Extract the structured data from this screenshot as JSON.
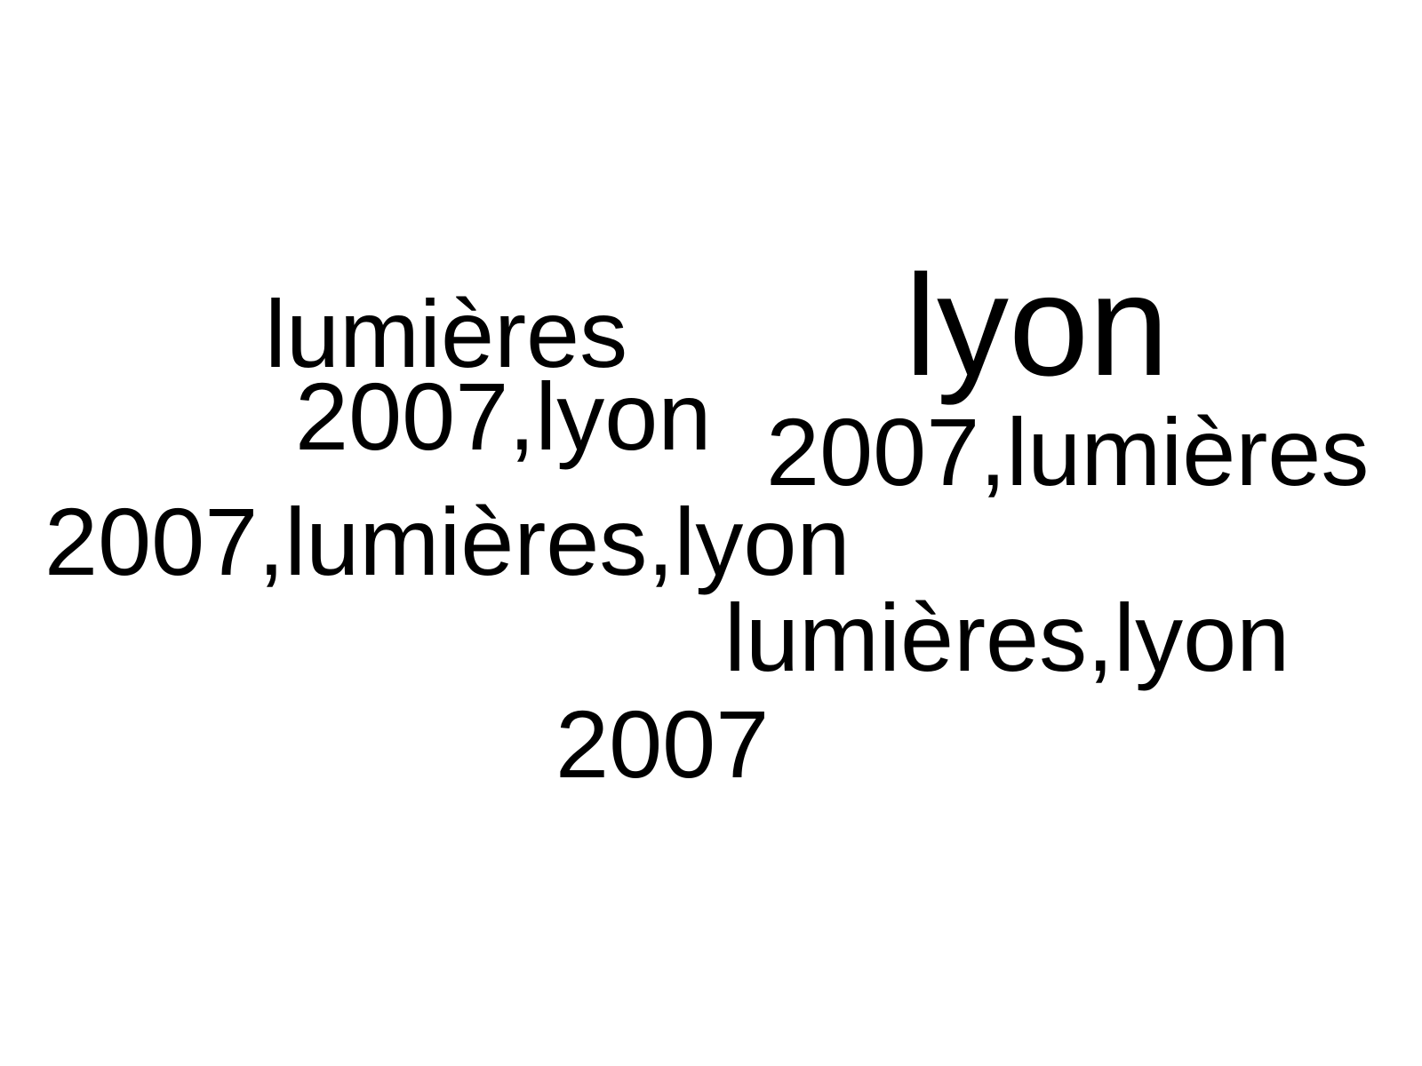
{
  "word_cloud": {
    "words": [
      {
        "text": "lumières"
      },
      {
        "text": "lyon"
      },
      {
        "text": "2007,lyon"
      },
      {
        "text": "2007,lumières"
      },
      {
        "text": "2007,lumières,lyon"
      },
      {
        "text": "lumières,lyon"
      },
      {
        "text": "2007"
      }
    ],
    "text_color": "#000000",
    "background_color": "#ffffff"
  }
}
